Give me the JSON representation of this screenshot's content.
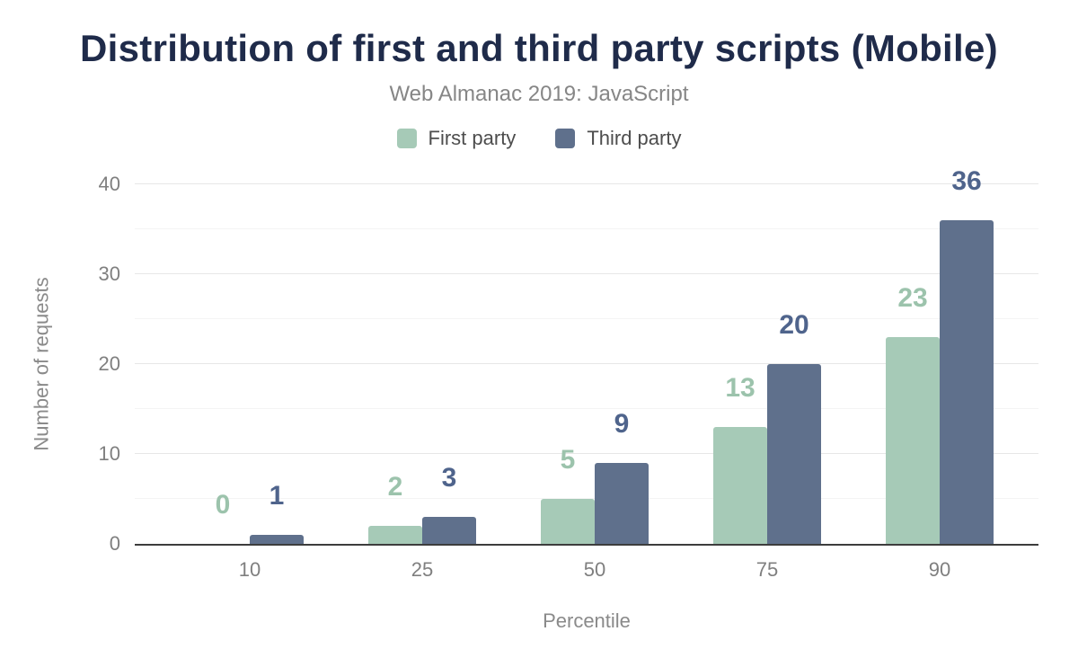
{
  "header": {
    "title": "Distribution of first and third party scripts (Mobile)",
    "subtitle": "Web Almanac 2019: JavaScript"
  },
  "chart_data": {
    "type": "bar",
    "title": "Distribution of first and third party scripts (Mobile)",
    "subtitle": "Web Almanac 2019: JavaScript",
    "categories": [
      "10",
      "25",
      "50",
      "75",
      "90"
    ],
    "series": [
      {
        "name": "First party",
        "color": "#a6cab7",
        "label_color": "#9cc3ac",
        "values": [
          0,
          2,
          5,
          13,
          23
        ]
      },
      {
        "name": "Third party",
        "color": "#5f708c",
        "label_color": "#4f648c",
        "values": [
          1,
          3,
          9,
          20,
          36
        ]
      }
    ],
    "xlabel": "Percentile",
    "ylabel": "Number of requests",
    "ylim": [
      0,
      40
    ],
    "y_major_step": 10,
    "y_minor_step": 5,
    "y_tick_labels": [
      "0",
      "10",
      "20",
      "30",
      "40"
    ],
    "grid": true,
    "legend_position": "top",
    "data_labels_shown": true
  },
  "colors": {
    "title": "#1f2b4a",
    "axis_text": "#7f7f7f",
    "grid_major": "#e7e7e7",
    "grid_minor": "#f4f4f4",
    "baseline": "#3d3d3d",
    "background": "#ffffff"
  }
}
